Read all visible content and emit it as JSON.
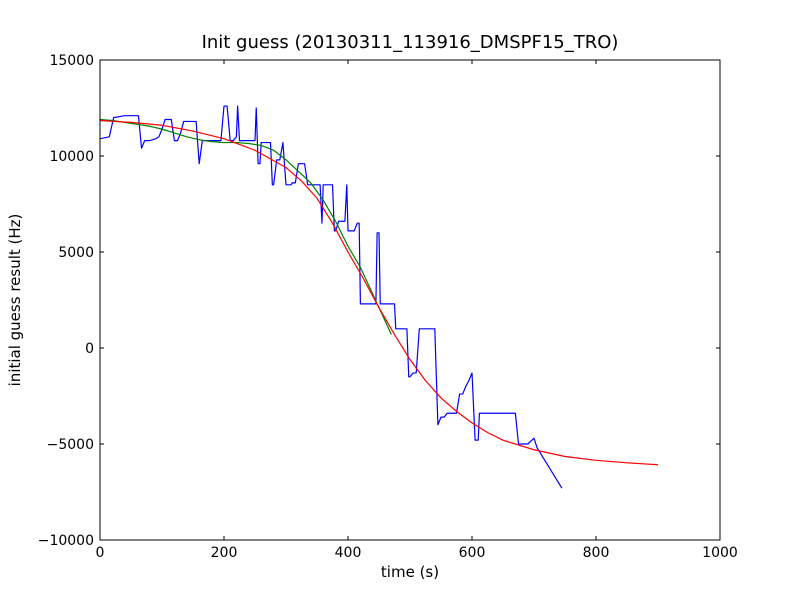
{
  "chart_data": {
    "type": "line",
    "title": "Init guess (20130311_113916_DMSPF15_TRO)",
    "xlabel": "time (s)",
    "ylabel": "initial guess result (Hz)",
    "xlim": [
      0,
      1000
    ],
    "ylim": [
      -10000,
      15000
    ],
    "xticks": [
      0,
      200,
      400,
      600,
      800,
      1000
    ],
    "xtick_labels": [
      "0",
      "200",
      "400",
      "600",
      "800",
      "1000"
    ],
    "yticks": [
      -10000,
      -5000,
      0,
      5000,
      10000,
      15000
    ],
    "ytick_labels": [
      "−10000",
      "−5000",
      "0",
      "5000",
      "10000",
      "15000"
    ],
    "grid": false,
    "legend": "none",
    "series": [
      {
        "color": "#0000ff",
        "x": [
          0,
          15,
          22,
          40,
          55,
          62,
          67,
          72,
          80,
          90,
          95,
          100,
          105,
          115,
          120,
          125,
          130,
          135,
          140,
          145,
          155,
          160,
          165,
          170,
          175,
          180,
          185,
          195,
          200,
          205,
          210,
          215,
          220,
          222,
          225,
          230,
          240,
          245,
          250,
          252,
          255,
          258,
          260,
          265,
          270,
          275,
          278,
          280,
          285,
          290,
          295,
          300,
          305,
          308,
          310,
          315,
          320,
          325,
          330,
          335,
          340,
          345,
          350,
          355,
          358,
          360,
          365,
          370,
          375,
          378,
          380,
          385,
          390,
          395,
          398,
          400,
          403,
          410,
          415,
          418,
          420,
          423,
          425,
          427,
          430,
          435,
          440,
          445,
          447,
          450,
          452,
          455,
          460,
          465,
          470,
          475,
          477,
          480,
          485,
          490,
          493,
          495,
          498,
          500,
          505,
          510,
          515,
          520,
          530,
          535,
          540,
          545,
          550,
          555,
          560,
          565,
          575,
          580,
          585,
          590,
          595,
          600,
          605,
          610,
          612,
          617,
          622,
          630,
          640,
          650,
          660,
          670,
          675,
          680,
          690,
          700,
          705,
          745
        ],
        "y": [
          10900,
          11000,
          12000,
          12100,
          12100,
          12100,
          10400,
          10800,
          10800,
          10900,
          11000,
          11400,
          11900,
          11900,
          10800,
          10800,
          11200,
          11800,
          11800,
          11800,
          11800,
          9600,
          10800,
          10800,
          10800,
          10800,
          10800,
          10800,
          12600,
          12600,
          10800,
          10800,
          11000,
          12600,
          10800,
          10800,
          10800,
          10800,
          10800,
          12500,
          9600,
          9600,
          10700,
          10700,
          10700,
          10700,
          8500,
          8500,
          9800,
          9800,
          10700,
          8500,
          8500,
          8500,
          8600,
          8600,
          9600,
          9600,
          9600,
          8500,
          8500,
          8500,
          8500,
          8500,
          6500,
          8500,
          8500,
          8500,
          8500,
          6100,
          6100,
          6600,
          6600,
          6600,
          8500,
          6100,
          6100,
          6100,
          6500,
          6500,
          2300,
          2300,
          2300,
          2300,
          2300,
          2300,
          2300,
          2300,
          6000,
          6000,
          2300,
          2300,
          2300,
          2300,
          2300,
          2300,
          1000,
          1000,
          1000,
          1000,
          1000,
          1000,
          -1500,
          -1500,
          -1300,
          -1300,
          1000,
          1000,
          1000,
          1000,
          1000,
          -4000,
          -3600,
          -3600,
          -3400,
          -3400,
          -3400,
          -2400,
          -2400,
          -2000,
          -1700,
          -1300,
          -4800,
          -4800,
          -3400,
          -3400,
          -3400,
          -3400,
          -3400,
          -3400,
          -3400,
          -3400,
          -5000,
          -5000,
          -5000,
          -4700,
          -5200,
          -7300
        ]
      },
      {
        "color": "#008000",
        "x": [
          0,
          20,
          40,
          60,
          80,
          100,
          120,
          140,
          160,
          180,
          200,
          220,
          240,
          260,
          280,
          300,
          320,
          340,
          360,
          380,
          400,
          420,
          440,
          460,
          470
        ],
        "y": [
          11900,
          11850,
          11750,
          11650,
          11550,
          11400,
          11200,
          11000,
          10850,
          10750,
          10700,
          10700,
          10650,
          10550,
          10300,
          9800,
          9200,
          8600,
          7700,
          6600,
          5300,
          4200,
          2800,
          1400,
          700
        ]
      },
      {
        "color": "#ff0000",
        "x": [
          0,
          50,
          100,
          150,
          200,
          250,
          300,
          325,
          350,
          375,
          400,
          425,
          450,
          475,
          500,
          525,
          550,
          575,
          600,
          625,
          650,
          700,
          750,
          800,
          850,
          900
        ],
        "y": [
          11850,
          11750,
          11600,
          11300,
          10900,
          10300,
          9400,
          8700,
          7800,
          6500,
          5000,
          3600,
          2100,
          700,
          -600,
          -1700,
          -2600,
          -3300,
          -3900,
          -4400,
          -4800,
          -5300,
          -5650,
          -5850,
          -5980,
          -6080
        ]
      }
    ]
  }
}
